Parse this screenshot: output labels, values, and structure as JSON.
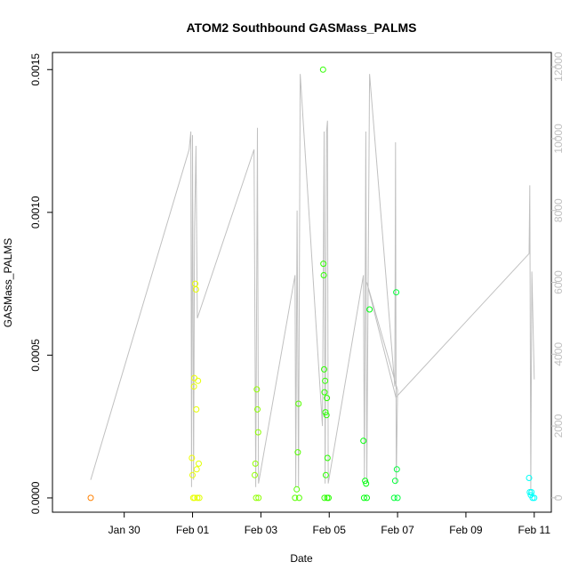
{
  "chart_data": {
    "type": "scatter",
    "title": "ATOM2 Southbound GASMass_PALMS",
    "xlabel": "Date",
    "ylabel": "GASMass_PALMS",
    "x_ticks": [
      "Jan 30",
      "Feb 01",
      "Feb 03",
      "Feb 05",
      "Feb 07",
      "Feb 09",
      "Feb 11"
    ],
    "x_tick_days": [
      30,
      32,
      34,
      36,
      38,
      40,
      42
    ],
    "xlim_days": [
      27.9,
      42.5
    ],
    "y_ticks": [
      "0.0000",
      "0.0005",
      "0.0010",
      "0.0015"
    ],
    "y_tick_values": [
      0.0,
      0.0005,
      0.001,
      0.0015
    ],
    "ylim": [
      -5e-05,
      0.00156
    ],
    "y2_ticks": [
      "0",
      "2000",
      "4000",
      "6000",
      "8000",
      "10000",
      "12000"
    ],
    "y2_tick_values": [
      0,
      2000,
      4000,
      6000,
      8000,
      10000,
      12000
    ],
    "y2lim": [
      -400,
      12400
    ],
    "colors": {
      "axis": "#000000",
      "secondary_axis": "#c0c0c0",
      "altitude_line": "#c0c0c0"
    },
    "series": [
      {
        "points": [
          {
            "x": 29.02,
            "y": 0.0
          },
          {
            "x": 31.98,
            "y": 0.00014
          },
          {
            "x": 32.0,
            "y": 8e-05
          },
          {
            "x": 32.02,
            "y": 0.0
          },
          {
            "x": 32.04,
            "y": 0.00039
          },
          {
            "x": 32.05,
            "y": 0.00042
          },
          {
            "x": 32.06,
            "y": 0.0
          },
          {
            "x": 32.08,
            "y": 0.00075
          },
          {
            "x": 32.1,
            "y": 0.00073
          },
          {
            "x": 32.11,
            "y": 0.00031
          },
          {
            "x": 32.12,
            "y": 0.0001
          },
          {
            "x": 32.14,
            "y": 0.0
          },
          {
            "x": 32.16,
            "y": 0.00041
          },
          {
            "x": 32.18,
            "y": 0.00012
          },
          {
            "x": 32.2,
            "y": 0.0
          },
          {
            "x": 33.82,
            "y": 8e-05
          },
          {
            "x": 33.84,
            "y": 0.00012
          },
          {
            "x": 33.86,
            "y": 0.0
          },
          {
            "x": 33.88,
            "y": 0.00038
          },
          {
            "x": 33.9,
            "y": 0.00031
          },
          {
            "x": 33.92,
            "y": 0.00023
          },
          {
            "x": 33.93,
            "y": 0.0
          },
          {
            "x": 35.0,
            "y": 0.0
          },
          {
            "x": 35.05,
            "y": 3e-05
          },
          {
            "x": 35.08,
            "y": 0.00016
          },
          {
            "x": 35.1,
            "y": 0.00033
          },
          {
            "x": 35.12,
            "y": 0.0
          },
          {
            "x": 35.82,
            "y": 0.0015
          },
          {
            "x": 35.83,
            "y": 0.00082
          },
          {
            "x": 35.84,
            "y": 0.00078
          },
          {
            "x": 35.85,
            "y": 0.00045
          },
          {
            "x": 35.86,
            "y": 0.00037
          },
          {
            "x": 35.88,
            "y": 0.00041
          },
          {
            "x": 35.89,
            "y": 0.0003
          },
          {
            "x": 35.9,
            "y": 8e-05
          },
          {
            "x": 35.92,
            "y": 0.00029
          },
          {
            "x": 35.93,
            "y": 0.00035
          },
          {
            "x": 35.95,
            "y": 0.00014
          },
          {
            "x": 35.86,
            "y": 0.0
          },
          {
            "x": 35.94,
            "y": 0.0
          },
          {
            "x": 35.98,
            "y": 0.0
          },
          {
            "x": 37.0,
            "y": 0.0002
          },
          {
            "x": 37.02,
            "y": 0.0
          },
          {
            "x": 37.05,
            "y": 6e-05
          },
          {
            "x": 37.08,
            "y": 5e-05
          },
          {
            "x": 37.1,
            "y": 0.0
          },
          {
            "x": 37.18,
            "y": 0.00066
          },
          {
            "x": 37.9,
            "y": 0.0
          },
          {
            "x": 37.93,
            "y": 6e-05
          },
          {
            "x": 37.96,
            "y": 0.00072
          },
          {
            "x": 37.98,
            "y": 0.0001
          },
          {
            "x": 38.0,
            "y": 0.0
          },
          {
            "x": 41.85,
            "y": 7e-05
          },
          {
            "x": 41.87,
            "y": 2e-05
          },
          {
            "x": 41.9,
            "y": 1e-05
          },
          {
            "x": 41.92,
            "y": 2e-05
          },
          {
            "x": 41.95,
            "y": 0.0
          },
          {
            "x": 42.0,
            "y": 0.0
          }
        ]
      }
    ],
    "altitude_line": [
      {
        "x": 29.02,
        "y2": 500
      },
      {
        "x": 31.9,
        "y2": 9700
      },
      {
        "x": 31.95,
        "y2": 10200
      },
      {
        "x": 31.97,
        "y2": 300
      },
      {
        "x": 32.0,
        "y2": 10100
      },
      {
        "x": 32.03,
        "y2": 500
      },
      {
        "x": 32.06,
        "y2": 7500
      },
      {
        "x": 32.1,
        "y2": 9800
      },
      {
        "x": 32.14,
        "y2": 5000
      },
      {
        "x": 33.8,
        "y2": 9700
      },
      {
        "x": 33.85,
        "y2": 300
      },
      {
        "x": 33.9,
        "y2": 10300
      },
      {
        "x": 33.93,
        "y2": 400
      },
      {
        "x": 35.0,
        "y2": 6200
      },
      {
        "x": 35.02,
        "y2": 300
      },
      {
        "x": 35.06,
        "y2": 8000
      },
      {
        "x": 35.1,
        "y2": 300
      },
      {
        "x": 35.15,
        "y2": 11800
      },
      {
        "x": 35.8,
        "y2": 2000
      },
      {
        "x": 35.85,
        "y2": 10200
      },
      {
        "x": 35.88,
        "y2": 400
      },
      {
        "x": 35.92,
        "y2": 10200
      },
      {
        "x": 35.95,
        "y2": 10500
      },
      {
        "x": 35.97,
        "y2": 400
      },
      {
        "x": 37.0,
        "y2": 6200
      },
      {
        "x": 37.03,
        "y2": 500
      },
      {
        "x": 37.07,
        "y2": 10200
      },
      {
        "x": 37.1,
        "y2": 400
      },
      {
        "x": 37.18,
        "y2": 11800
      },
      {
        "x": 37.92,
        "y2": 3100
      },
      {
        "x": 37.94,
        "y2": 9900
      },
      {
        "x": 37.96,
        "y2": 400
      },
      {
        "x": 38.0,
        "y2": 3000
      },
      {
        "x": 37.1,
        "y2": 6000
      },
      {
        "x": 37.95,
        "y2": 2800
      },
      {
        "x": 41.85,
        "y2": 6800
      },
      {
        "x": 41.87,
        "y2": 8700
      },
      {
        "x": 41.9,
        "y2": 200
      },
      {
        "x": 41.93,
        "y2": 6300
      },
      {
        "x": 42.0,
        "y2": 3300
      }
    ]
  }
}
